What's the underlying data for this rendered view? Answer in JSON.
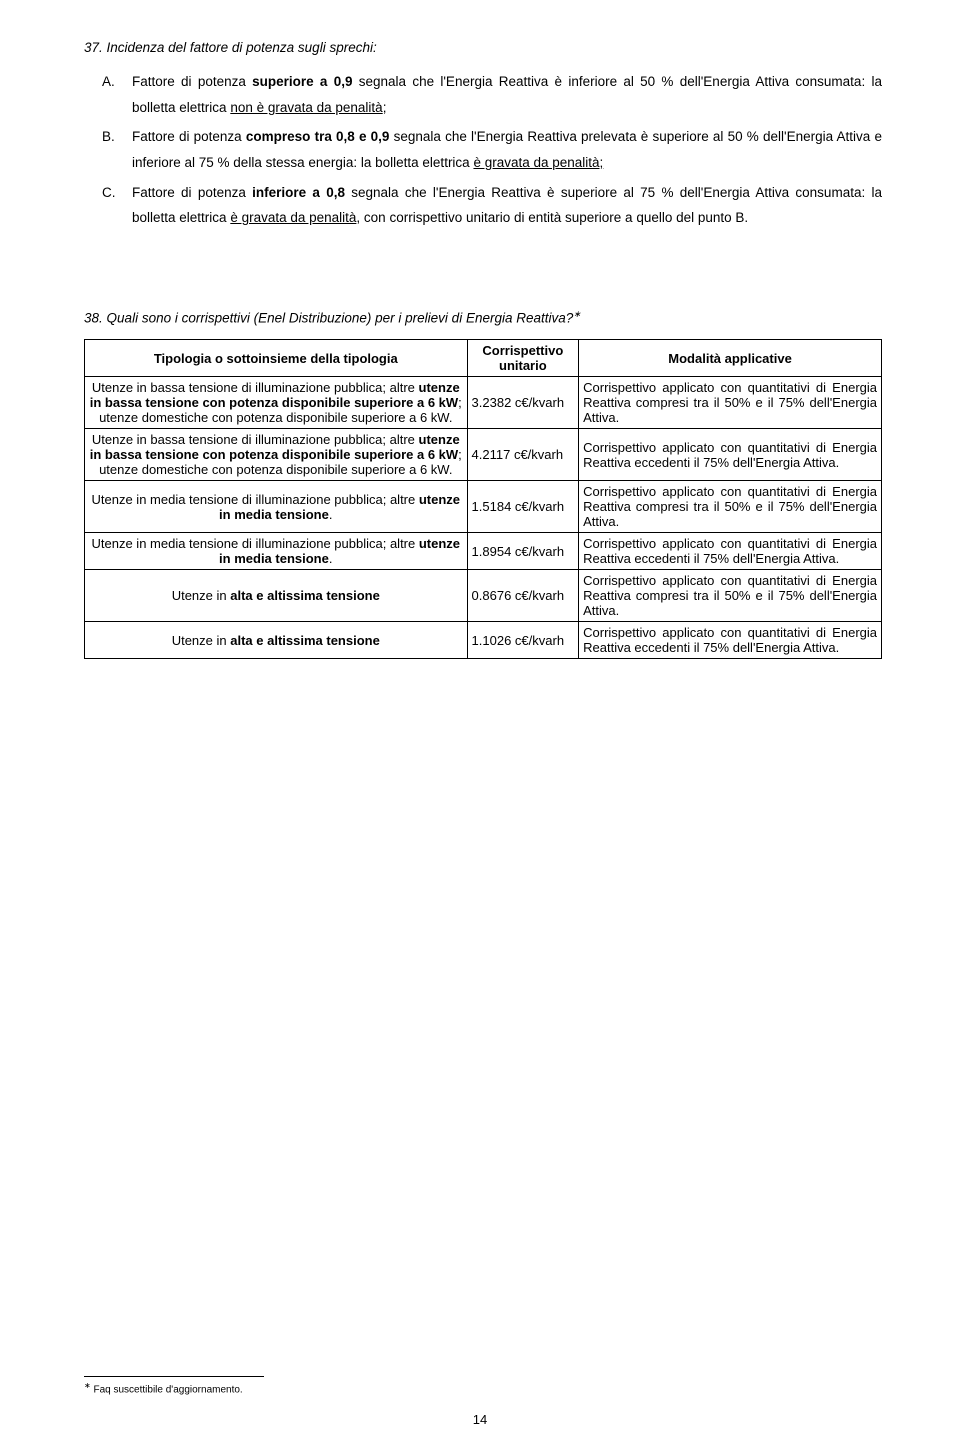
{
  "question37": {
    "heading_num": "37.",
    "heading_text": "Incidenza del fattore di potenza sugli sprechi:",
    "items": [
      {
        "marker": "A.",
        "pre": "Fattore di potenza ",
        "bold1": "superiore a 0,9",
        "mid": " segnala che l'Energia Reattiva è inferiore al 50 % dell'Energia Attiva consumata: la bolletta elettrica ",
        "u1": "non è gravata da penalità",
        "post": ";"
      },
      {
        "marker": "B.",
        "pre": "Fattore di potenza ",
        "bold1": "compreso tra 0,8 e 0,9",
        "mid": " segnala che l'Energia Reattiva prelevata è superiore al 50 % dell'Energia Attiva e inferiore al 75 % della stessa energia: la bolletta elettrica ",
        "u1": "è gravata da penalità;",
        "post": ""
      },
      {
        "marker": "C.",
        "pre": "Fattore di potenza ",
        "bold1": "inferiore a 0,8",
        "mid": " segnala che l'Energia Reattiva è superiore al 75 % dell'Energia Attiva consumata: la bolletta elettrica ",
        "u1": "è gravata da penalità",
        "post": ", con corrispettivo unitario di entità superiore a quello del punto B."
      }
    ]
  },
  "question38": {
    "heading_num": "38.",
    "heading_text_pre": "Quali sono i corrispettivi (Enel Distribuzione) per i prelievi di Energia Reattiva?",
    "asterisk": "∗"
  },
  "table": {
    "headers": {
      "c1": "Tipologia o sottoinsieme della tipologia",
      "c2": "Corrispettivo unitario",
      "c3": "Modalità applicative"
    },
    "rows": [
      {
        "tip_pre": "Utenze in bassa tensione di illuminazione pubblica; altre ",
        "tip_b1": "utenze in bassa tensione con potenza disponibile superiore a 6 kW",
        "tip_mid": "; utenze domestiche con potenza disponibile superiore a 6 kW.",
        "corr": "3.2382 c€/kvarh",
        "mod": "Corrispettivo applicato con quantitativi di Energia Reattiva compresi tra il 50% e il 75% dell'Energia Attiva."
      },
      {
        "tip_pre": "Utenze in bassa tensione di illuminazione pubblica; altre ",
        "tip_b1": "utenze in bassa tensione con potenza disponibile superiore a 6 kW",
        "tip_mid": "; utenze domestiche con potenza disponibile superiore a 6 kW.",
        "corr": "4.2117 c€/kvarh",
        "mod": "Corrispettivo applicato con quantitativi di Energia Reattiva eccedenti il 75% dell'Energia Attiva."
      },
      {
        "tip_pre": "Utenze in media tensione di illuminazione pubblica; altre ",
        "tip_b1": "utenze in media tensione",
        "tip_mid": ".",
        "corr": "1.5184 c€/kvarh",
        "mod": "Corrispettivo applicato con quantitativi di Energia Reattiva compresi tra il 50% e il 75% dell'Energia Attiva."
      },
      {
        "tip_pre": "Utenze in media tensione di illuminazione pubblica; altre ",
        "tip_b1": "utenze in media tensione",
        "tip_mid": ".",
        "corr": "1.8954 c€/kvarh",
        "mod": "Corrispettivo applicato con quantitativi di Energia Reattiva eccedenti il 75% dell'Energia Attiva."
      },
      {
        "tip_pre": "Utenze in ",
        "tip_b1": "alta e altissima tensione",
        "tip_mid": "",
        "corr": "0.8676 c€/kvarh",
        "mod": "Corrispettivo applicato con quantitativi di Energia Reattiva compresi tra il 50% e il 75% dell'Energia Attiva."
      },
      {
        "tip_pre": "Utenze in ",
        "tip_b1": "alta e altissima tensione",
        "tip_mid": "",
        "corr": "1.1026 c€/kvarh",
        "mod": "Corrispettivo applicato con quantitativi di Energia Reattiva eccedenti il 75% dell'Energia Attiva."
      }
    ]
  },
  "footnote": {
    "marker": "∗",
    "text": " Faq suscettibile d'aggiornamento."
  },
  "page_number": "14"
}
